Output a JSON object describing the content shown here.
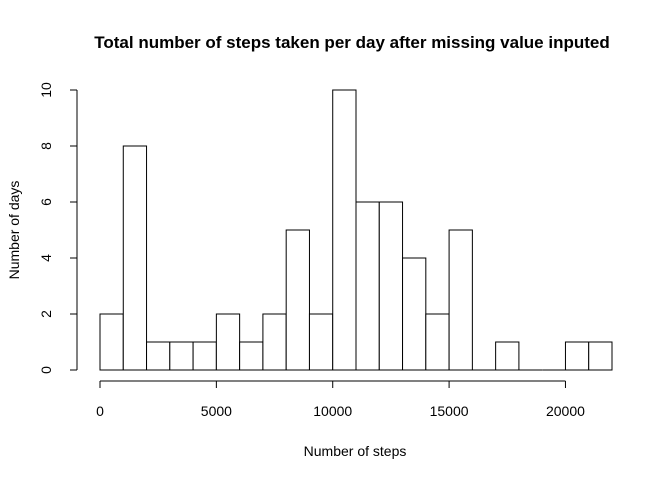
{
  "chart_data": {
    "type": "bar",
    "title": "Total number of steps taken per day after missing value inputed",
    "xlabel": "Number of steps",
    "ylabel": "Number of days",
    "bin_width": 1000,
    "x": [
      0,
      1000,
      2000,
      3000,
      4000,
      5000,
      6000,
      7000,
      8000,
      9000,
      10000,
      11000,
      12000,
      13000,
      14000,
      15000,
      16000,
      17000,
      18000,
      19000,
      20000,
      21000
    ],
    "values": [
      2,
      8,
      1,
      1,
      1,
      2,
      1,
      2,
      5,
      2,
      10,
      6,
      6,
      4,
      2,
      5,
      0,
      1,
      0,
      0,
      1,
      1
    ],
    "xlim": [
      0,
      22000
    ],
    "ylim": [
      0,
      10
    ],
    "x_ticks": [
      0,
      5000,
      10000,
      15000,
      20000
    ],
    "x_tick_labels": [
      "0",
      "5000",
      "10000",
      "15000",
      "20000"
    ],
    "y_ticks": [
      0,
      2,
      4,
      6,
      8,
      10
    ],
    "y_tick_labels": [
      "0",
      "2",
      "4",
      "6",
      "8",
      "10"
    ],
    "grid": false,
    "legend": "none"
  }
}
